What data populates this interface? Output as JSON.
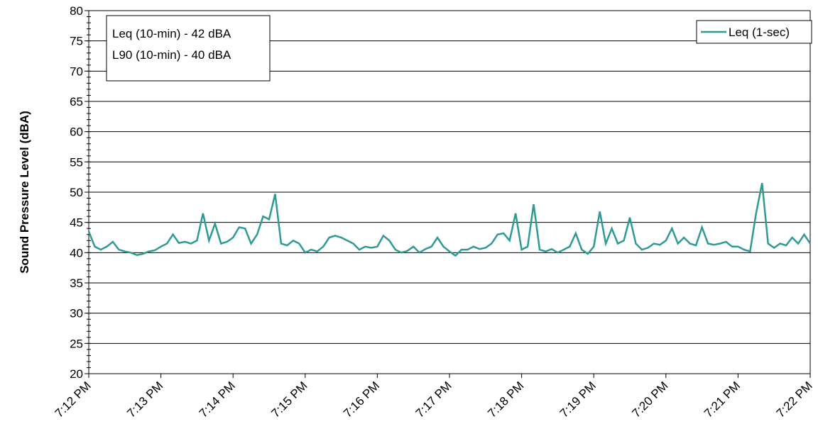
{
  "chart_data": {
    "type": "line",
    "y_label": "Sound Pressure Level (dBA)",
    "annotations": [
      "Leq (10-min) - 42 dBA",
      "L90 (10-min) - 40 dBA"
    ],
    "xticks": [
      "7:12 PM",
      "7:13 PM",
      "7:14 PM",
      "7:15 PM",
      "7:16 PM",
      "7:17 PM",
      "7:18 PM",
      "7:19 PM",
      "7:20 PM",
      "7:21 PM",
      "7:22 PM"
    ],
    "ylim": [
      20,
      80
    ],
    "yticks": [
      20,
      25,
      30,
      35,
      40,
      45,
      50,
      55,
      60,
      65,
      70,
      75,
      80
    ],
    "grid": true,
    "legend": "upper right",
    "series": [
      {
        "name": "Leq (1-sec)",
        "color": "#2e9a94",
        "values": [
          43.5,
          41,
          40.5,
          41,
          41.8,
          40.5,
          40.2,
          40,
          39.6,
          39.8,
          40.2,
          40.4,
          41,
          41.5,
          43,
          41.6,
          41.8,
          41.5,
          42,
          46.5,
          42,
          44.8,
          41.5,
          41.8,
          42.5,
          44.2,
          44,
          41.5,
          43,
          46,
          45.5,
          49.7,
          41.5,
          41.2,
          42,
          41.5,
          40,
          40.5,
          40.2,
          41,
          42.5,
          42.8,
          42.5,
          42,
          41.5,
          40.5,
          41,
          40.8,
          41,
          42.8,
          42,
          40.5,
          40,
          40.3,
          41,
          40,
          40.6,
          41,
          42.5,
          41,
          40.2,
          39.5,
          40.5,
          40.5,
          41,
          40.6,
          40.8,
          41.5,
          43,
          43.2,
          42,
          46.5,
          40.5,
          41,
          48,
          40.5,
          40.2,
          40.6,
          40,
          40.5,
          41,
          43.2,
          40.5,
          39.8,
          41,
          46.8,
          41.5,
          44,
          41.5,
          42,
          45.8,
          41.5,
          40.5,
          40.8,
          41.5,
          41.3,
          42,
          44,
          41.5,
          42.5,
          41.5,
          41.2,
          44.2,
          41.5,
          41.3,
          41.5,
          41.8,
          41,
          41,
          40.5,
          40.2,
          46.5,
          51.5,
          41.5,
          40.8,
          41.5,
          41.2,
          42.5,
          41.5,
          43,
          41.5
        ]
      }
    ]
  }
}
